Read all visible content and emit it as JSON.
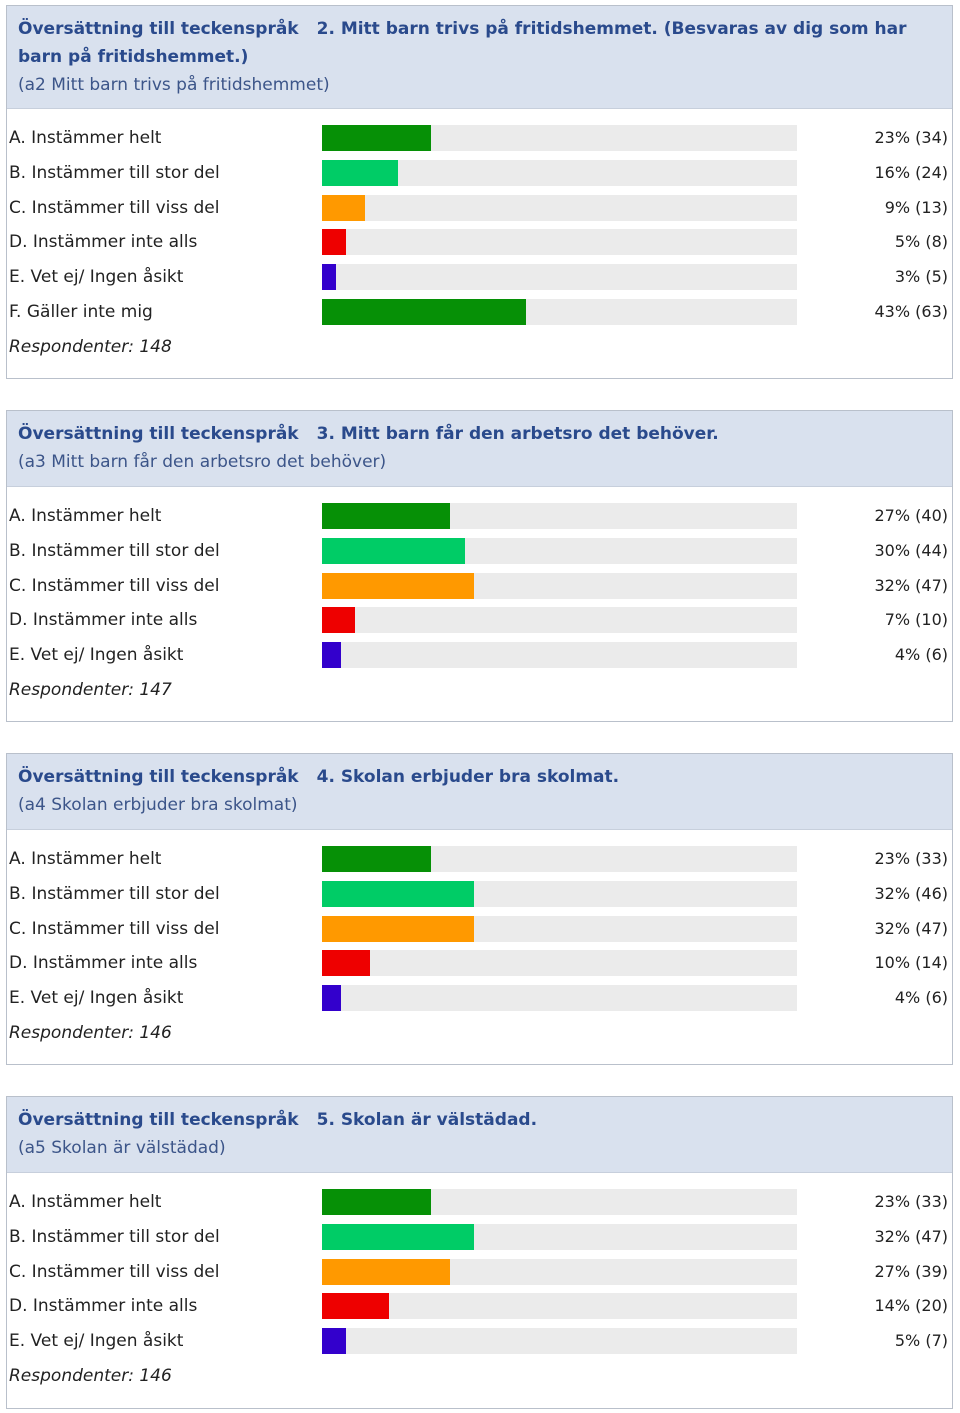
{
  "colors": {
    "dark_green": "#069006",
    "light_green": "#00cc66",
    "orange": "#ff9900",
    "red": "#ee0000",
    "blue": "#3300cc"
  },
  "chart_data": [
    {
      "type": "bar",
      "link_text": "Översättning till teckenspråk",
      "title": "2. Mitt barn trivs på fritidshemmet. (Besvaras av dig som har barn på fritidshemmet.)",
      "subtitle": "(a2 Mitt barn trivs på fritidshemmet)",
      "categories": [
        "A. Instämmer helt",
        "B. Instämmer till stor del",
        "C. Instämmer till viss del",
        "D. Instämmer inte alls",
        "E. Vet ej/ Ingen åsikt",
        "F. Gäller inte mig"
      ],
      "values": [
        23,
        16,
        9,
        5,
        3,
        43
      ],
      "value_labels": [
        "23% (34)",
        "16% (24)",
        "9% (13)",
        "5% (8)",
        "3% (5)",
        "43% (63)"
      ],
      "bar_colors": [
        "dark_green",
        "light_green",
        "orange",
        "red",
        "blue",
        "dark_green"
      ],
      "respondents": "Respondenter: 148",
      "xlim": [
        0,
        100
      ]
    },
    {
      "type": "bar",
      "link_text": "Översättning till teckenspråk",
      "title": "3. Mitt barn får den arbetsro det behöver.",
      "subtitle": "(a3 Mitt barn får den arbetsro det behöver)",
      "categories": [
        "A. Instämmer helt",
        "B. Instämmer till stor del",
        "C. Instämmer till viss del",
        "D. Instämmer inte alls",
        "E. Vet ej/ Ingen åsikt"
      ],
      "values": [
        27,
        30,
        32,
        7,
        4
      ],
      "value_labels": [
        "27% (40)",
        "30% (44)",
        "32% (47)",
        "7% (10)",
        "4% (6)"
      ],
      "bar_colors": [
        "dark_green",
        "light_green",
        "orange",
        "red",
        "blue"
      ],
      "respondents": "Respondenter: 147",
      "xlim": [
        0,
        100
      ]
    },
    {
      "type": "bar",
      "link_text": "Översättning till teckenspråk",
      "title": "4. Skolan erbjuder bra skolmat.",
      "subtitle": "(a4 Skolan erbjuder bra skolmat)",
      "categories": [
        "A. Instämmer helt",
        "B. Instämmer till stor del",
        "C. Instämmer till viss del",
        "D. Instämmer inte alls",
        "E. Vet ej/ Ingen åsikt"
      ],
      "values": [
        23,
        32,
        32,
        10,
        4
      ],
      "value_labels": [
        "23% (33)",
        "32% (46)",
        "32% (47)",
        "10% (14)",
        "4% (6)"
      ],
      "bar_colors": [
        "dark_green",
        "light_green",
        "orange",
        "red",
        "blue"
      ],
      "respondents": "Respondenter: 146",
      "xlim": [
        0,
        100
      ]
    },
    {
      "type": "bar",
      "link_text": "Översättning till teckenspråk",
      "title": "5. Skolan är välstädad.",
      "subtitle": "(a5 Skolan är välstädad)",
      "categories": [
        "A. Instämmer helt",
        "B. Instämmer till stor del",
        "C. Instämmer till viss del",
        "D. Instämmer inte alls",
        "E. Vet ej/ Ingen åsikt"
      ],
      "values": [
        23,
        32,
        27,
        14,
        5
      ],
      "value_labels": [
        "23% (33)",
        "32% (47)",
        "27% (39)",
        "14% (20)",
        "5% (7)"
      ],
      "bar_colors": [
        "dark_green",
        "light_green",
        "orange",
        "red",
        "blue"
      ],
      "respondents": "Respondenter: 146",
      "xlim": [
        0,
        100
      ]
    }
  ]
}
